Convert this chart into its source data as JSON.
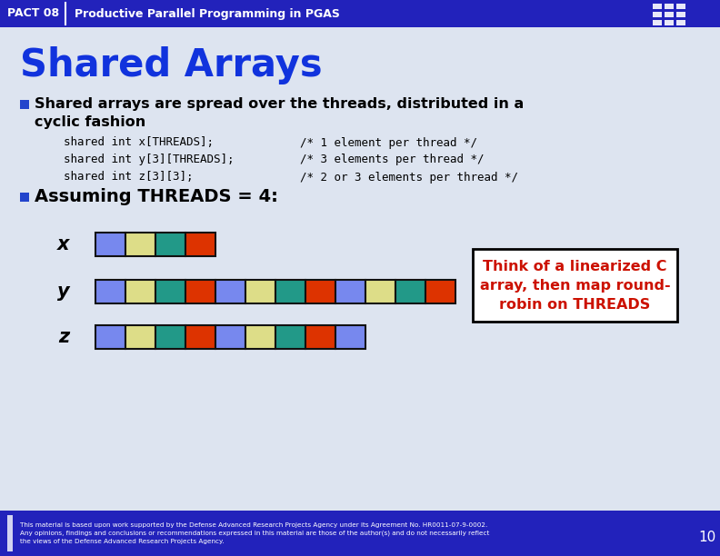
{
  "title_bar_color": "#2222bb",
  "title_bar_text": "PACT 08",
  "title_bar_subtitle": "Productive Parallel Programming in PGAS",
  "slide_bg": "#dde4f0",
  "main_title": "Shared Arrays",
  "main_title_color": "#1133dd",
  "bullet_color": "#2244cc",
  "bullet1_line1": "Shared arrays are spread over the threads, distributed in a",
  "bullet1_line2": "cyclic fashion",
  "code_lines": [
    [
      "shared int x[THREADS];",
      "/* 1 element per thread */"
    ],
    [
      "shared int y[3][THREADS];",
      "/* 3 elements per thread */"
    ],
    [
      "shared int z[3][3];",
      "/* 2 or 3 elements per thread */"
    ]
  ],
  "bullet2_text": "Assuming THREADS = 4:",
  "x_blocks": [
    "#7788ee",
    "#dddd88",
    "#229988",
    "#dd3300"
  ],
  "y_blocks": [
    "#7788ee",
    "#dddd88",
    "#229988",
    "#dd3300",
    "#7788ee",
    "#dddd88",
    "#229988",
    "#dd3300",
    "#7788ee",
    "#dddd88",
    "#229988",
    "#dd3300"
  ],
  "z_blocks": [
    "#7788ee",
    "#dddd88",
    "#229988",
    "#dd3300",
    "#7788ee",
    "#dddd88",
    "#229988",
    "#dd3300",
    "#7788ee"
  ],
  "hint_text": "Think of a linearized C\narray, then map round-\nrobin on THREADS",
  "hint_color": "#cc1100",
  "hint_border": "#000000",
  "footer_text": "This material is based upon work supported by the Defense Advanced Research Projects Agency under its Agreement No. HR0011-07-9-0002.\nAny opinions, findings and conclusions or recommendations expressed in this material are those of the author(s) and do not necessarily reflect\nthe views of the Defense Advanced Research Projects Agency.",
  "footer_bg": "#2222bb",
  "page_num": "10",
  "ibm_logo_color": "#aabbff"
}
